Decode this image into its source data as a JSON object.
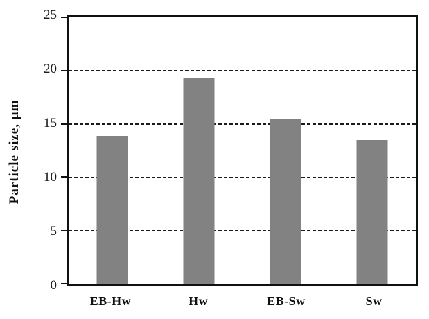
{
  "chart_data": {
    "type": "bar",
    "categories": [
      "EB-Hw",
      "Hw",
      "EB-Sw",
      "Sw"
    ],
    "values": [
      13.9,
      19.3,
      15.4,
      13.5
    ],
    "title": "",
    "xlabel": "",
    "ylabel": "Particle size, μm",
    "ylim": [
      0,
      25
    ],
    "yticks": [
      0,
      5,
      10,
      15,
      20,
      25
    ],
    "gridlines": [
      5,
      10,
      15,
      20
    ],
    "grid_style": "dashed",
    "legend": "none",
    "bar_color": "#828282",
    "axis_color": "#111111",
    "background_color": "#ffffff"
  }
}
